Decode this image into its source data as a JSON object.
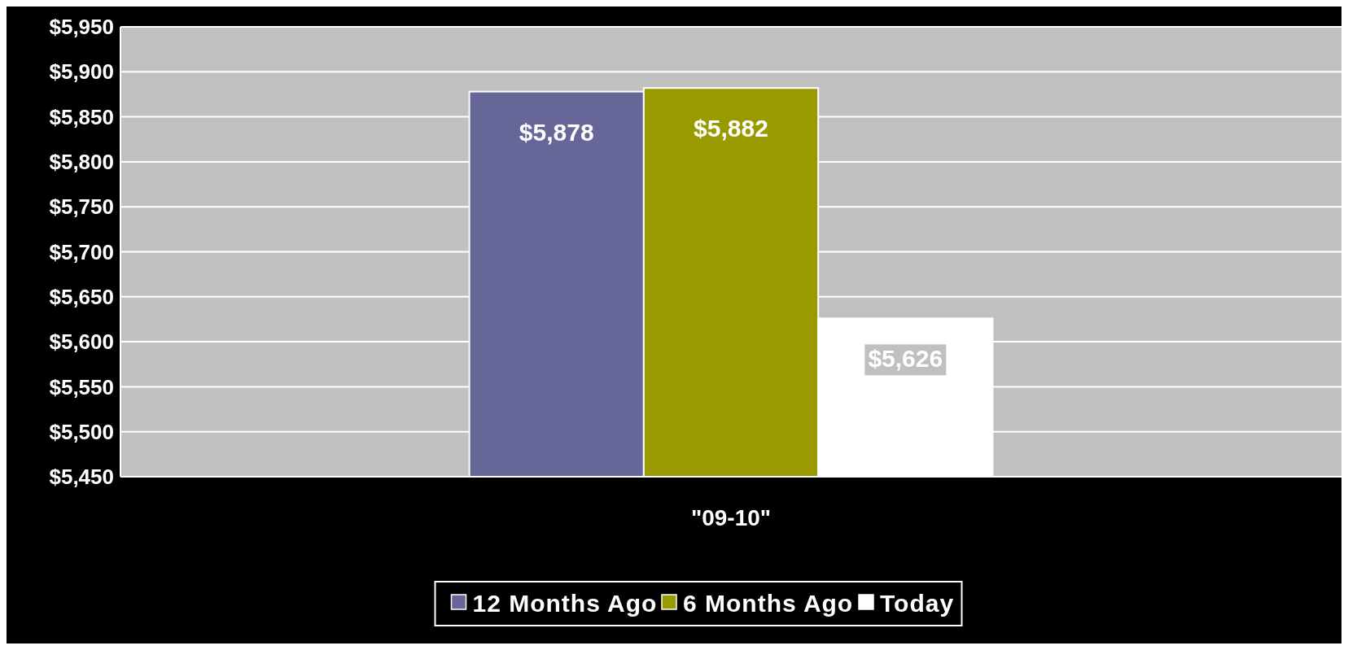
{
  "chart_data": {
    "type": "bar",
    "categories": [
      "\"09-10\""
    ],
    "series": [
      {
        "name": "12 Months Ago",
        "color": "#666699",
        "values": [
          5878
        ],
        "value_labels": [
          "$5,878"
        ]
      },
      {
        "name": "6 Months Ago",
        "color": "#999900",
        "values": [
          5882
        ],
        "value_labels": [
          "$5,882"
        ]
      },
      {
        "name": "Today",
        "color": "#ffffff",
        "values": [
          5626
        ],
        "value_labels": [
          "$5,626"
        ]
      }
    ],
    "ylim": [
      5450,
      5950
    ],
    "yticks": [
      {
        "value": 5450,
        "label": "$5,450"
      },
      {
        "value": 5500,
        "label": "$5,500"
      },
      {
        "value": 5550,
        "label": "$5,550"
      },
      {
        "value": 5600,
        "label": "$5,600"
      },
      {
        "value": 5650,
        "label": "$5,650"
      },
      {
        "value": 5700,
        "label": "$5,700"
      },
      {
        "value": 5750,
        "label": "$5,750"
      },
      {
        "value": 5800,
        "label": "$5,800"
      },
      {
        "value": 5850,
        "label": "$5,850"
      },
      {
        "value": 5900,
        "label": "$5,900"
      },
      {
        "value": 5950,
        "label": "$5,950"
      }
    ],
    "grid": "y",
    "legend": "bottom"
  }
}
